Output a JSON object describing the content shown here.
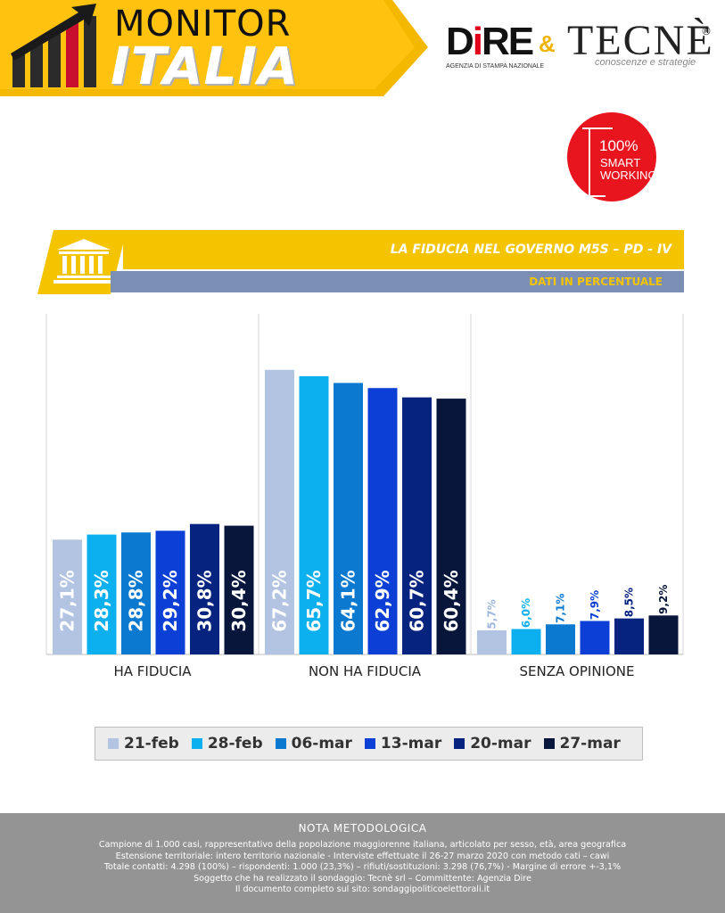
{
  "header": {
    "title_top": "MONITOR",
    "title_bottom": "ITALIA",
    "dire": "DiRE",
    "dire_sub": "AGENZIA DI STAMPA NAZIONALE",
    "amp": "&",
    "tecne": "TECNÈ",
    "tecne_reg": "®",
    "tecne_sub": "conoscenze e strategie"
  },
  "badge": {
    "line1": "100%",
    "line2": "SMART",
    "line3": "WORKING"
  },
  "band": {
    "title": "LA FIDUCIA NEL GOVERNO M5S – PD - IV",
    "subtitle": "DATI IN PERCENTUALE"
  },
  "chart_data": {
    "type": "bar",
    "categories": [
      "HA FIDUCIA",
      "NON HA FIDUCIA",
      "SENZA OPINIONE"
    ],
    "series": [
      {
        "name": "21-feb",
        "color": "#b3c4e3",
        "values": [
          27.1,
          67.2,
          5.7
        ],
        "labels": [
          "27,1%",
          "67,2%",
          "5,7%"
        ]
      },
      {
        "name": "28-feb",
        "color": "#0db0ef",
        "values": [
          28.3,
          65.7,
          6.0
        ],
        "labels": [
          "28,3%",
          "65,7%",
          "6,0%"
        ]
      },
      {
        "name": "06-mar",
        "color": "#0b79d0",
        "values": [
          28.8,
          64.1,
          7.1
        ],
        "labels": [
          "28,8%",
          "64,1%",
          "7,1%"
        ]
      },
      {
        "name": "13-mar",
        "color": "#0b3fd6",
        "values": [
          29.2,
          62.9,
          7.9
        ],
        "labels": [
          "29,2%",
          "62,9%",
          "7,9%"
        ]
      },
      {
        "name": "20-mar",
        "color": "#06237f",
        "values": [
          30.8,
          60.7,
          8.5
        ],
        "labels": [
          "30,8%",
          "60,7%",
          "8,5%"
        ]
      },
      {
        "name": "27-mar",
        "color": "#08163c",
        "values": [
          30.4,
          60.4,
          9.2
        ],
        "labels": [
          "30,4%",
          "60,4%",
          "9,2%"
        ]
      }
    ],
    "ylim": [
      0,
      75
    ],
    "grid": false,
    "legend": "bottom"
  },
  "footer": {
    "title": "NOTA METODOLOGICA",
    "lines": [
      "Campione di 1.000 casi, rappresentativo della popolazione maggiorenne italiana, articolato per sesso, età, area geografica",
      "Estensione territoriale: intero territorio nazionale  - Interviste effettuate il 26-27 marzo 2020 con metodo cati – cawi",
      "Totale contatti: 4.298 (100%) – rispondenti: 1.000 (23,3%) – rifiuti/sostituzioni: 3.298 (76,7%) - Margine di errore +-3,1%",
      "Soggetto che ha realizzato il sondaggio: Tecnè srl  –  Committente: Agenzia Dire",
      "Il documento completo sul sito: sondaggipoliticoelettorali.it"
    ]
  }
}
